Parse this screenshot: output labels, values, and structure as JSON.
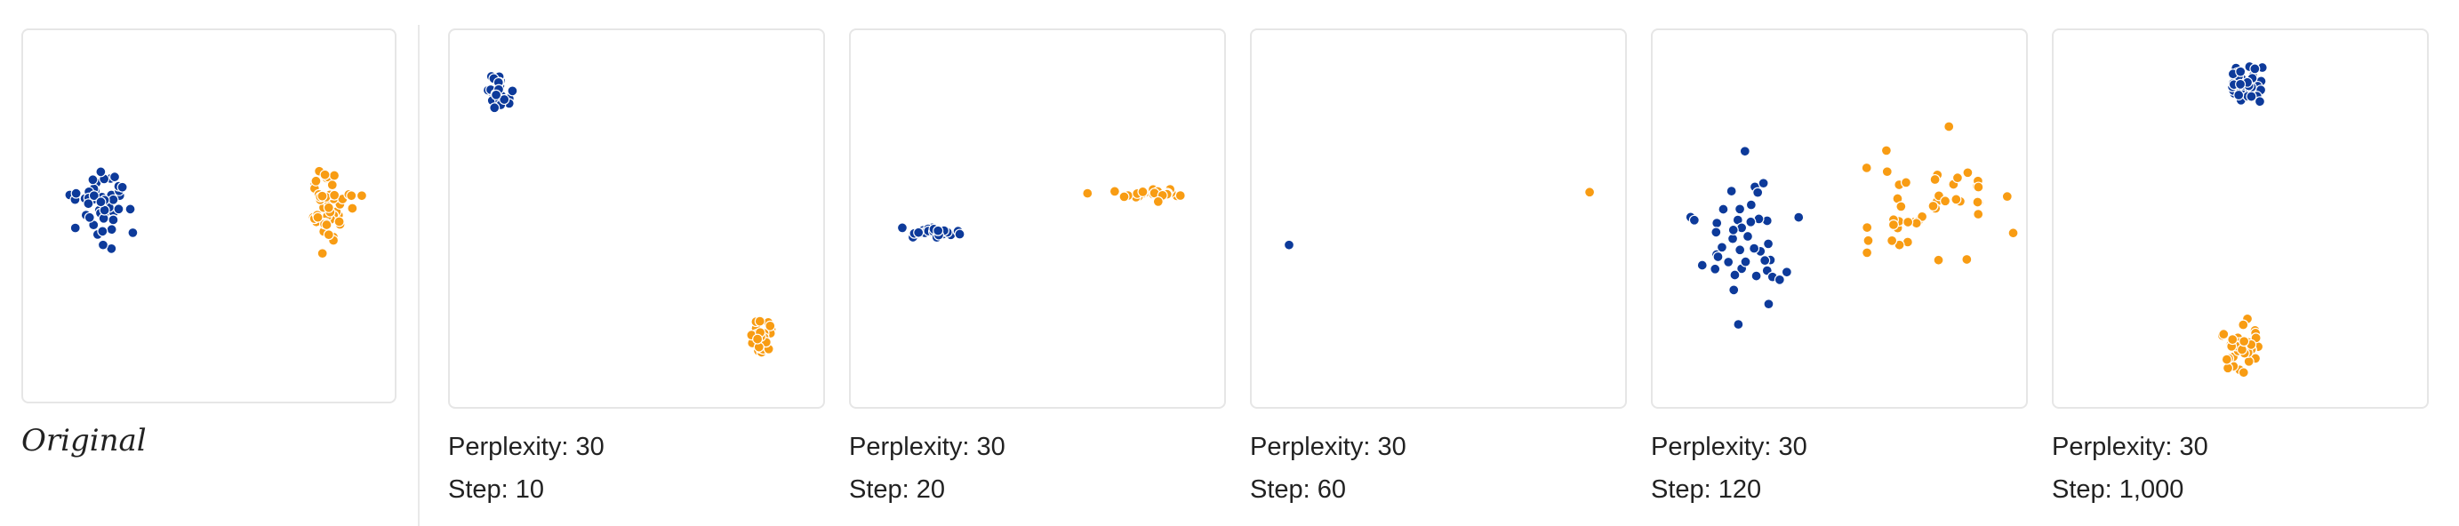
{
  "original": {
    "caption": "Original",
    "clusters": [
      {
        "color": "#0d3a9a",
        "center": [
          0.21,
          0.47
        ],
        "spread": [
          0.075,
          0.1
        ],
        "n": 50,
        "seed": 11
      },
      {
        "color": "#f89c13",
        "center": [
          0.82,
          0.47
        ],
        "spread": [
          0.06,
          0.1
        ],
        "n": 50,
        "seed": 12
      }
    ]
  },
  "snapshots": [
    {
      "perplexity_label": "Perplexity: 30",
      "step_label": "Step: 10",
      "step": 10,
      "clusters": [
        {
          "color": "#0d3a9a",
          "center": [
            0.13,
            0.16
          ],
          "spread": [
            0.03,
            0.045
          ],
          "n": 30,
          "seed": 21
        },
        {
          "color": "#f89c13",
          "center": [
            0.83,
            0.81
          ],
          "spread": [
            0.03,
            0.04
          ],
          "n": 30,
          "seed": 22
        }
      ]
    },
    {
      "perplexity_label": "Perplexity: 30",
      "step_label": "Step: 20",
      "step": 20,
      "clusters": [
        {
          "color": "#0d3a9a",
          "center": [
            0.22,
            0.535
          ],
          "spread": [
            0.085,
            0.012
          ],
          "n": 30,
          "seed": 31
        },
        {
          "color": "#f89c13",
          "center": [
            0.82,
            0.435
          ],
          "spread": [
            0.085,
            0.012
          ],
          "n": 30,
          "seed": 32
        }
      ]
    },
    {
      "perplexity_label": "Perplexity: 30",
      "step_label": "Step: 60",
      "step": 60,
      "clusters": [
        {
          "color": "#0d3a9a",
          "center": [
            0.1,
            0.57
          ],
          "spread": [
            0.0,
            0.0
          ],
          "n": 1,
          "seed": 41
        },
        {
          "color": "#f89c13",
          "center": [
            0.905,
            0.43
          ],
          "spread": [
            0.0,
            0.0
          ],
          "n": 1,
          "seed": 42
        }
      ]
    },
    {
      "perplexity_label": "Perplexity: 30",
      "step_label": "Step: 120",
      "step": 120,
      "clusters": [
        {
          "color": "#0d3a9a",
          "center": [
            0.24,
            0.54
          ],
          "spread": [
            0.14,
            0.19
          ],
          "n": 45,
          "seed": 51
        },
        {
          "color": "#f89c13",
          "center": [
            0.72,
            0.46
          ],
          "spread": [
            0.19,
            0.14
          ],
          "n": 45,
          "seed": 52
        }
      ]
    },
    {
      "perplexity_label": "Perplexity: 30",
      "step_label": "Step: 1,000",
      "step": 1000,
      "clusters": [
        {
          "color": "#0d3a9a",
          "center": [
            0.52,
            0.145
          ],
          "spread": [
            0.055,
            0.05
          ],
          "n": 45,
          "seed": 61
        },
        {
          "color": "#f89c13",
          "center": [
            0.5,
            0.835
          ],
          "spread": [
            0.05,
            0.06
          ],
          "n": 45,
          "seed": 62
        }
      ]
    }
  ]
}
